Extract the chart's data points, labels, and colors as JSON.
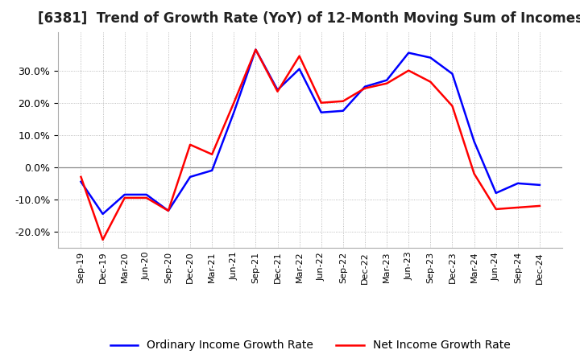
{
  "title": "[6381]  Trend of Growth Rate (YoY) of 12-Month Moving Sum of Incomes",
  "title_fontsize": 12,
  "ordinary_income": {
    "label": "Ordinary Income Growth Rate",
    "color": "#0000FF",
    "data": [
      [
        "Sep-19",
        -4.5
      ],
      [
        "Dec-19",
        -14.5
      ],
      [
        "Mar-20",
        -8.5
      ],
      [
        "Jun-20",
        -8.5
      ],
      [
        "Sep-20",
        -13.5
      ],
      [
        "Dec-20",
        -3.0
      ],
      [
        "Mar-21",
        -1.0
      ],
      [
        "Jun-21",
        17.0
      ],
      [
        "Sep-21",
        36.5
      ],
      [
        "Dec-21",
        24.0
      ],
      [
        "Mar-22",
        30.5
      ],
      [
        "Jun-22",
        17.0
      ],
      [
        "Sep-22",
        17.5
      ],
      [
        "Dec-22",
        25.0
      ],
      [
        "Mar-23",
        27.0
      ],
      [
        "Jun-23",
        35.5
      ],
      [
        "Sep-23",
        34.0
      ],
      [
        "Dec-23",
        29.0
      ],
      [
        "Mar-24",
        8.0
      ],
      [
        "Jun-24",
        -8.0
      ],
      [
        "Sep-24",
        -5.0
      ],
      [
        "Dec-24",
        -5.5
      ]
    ]
  },
  "net_income": {
    "label": "Net Income Growth Rate",
    "color": "#FF0000",
    "data": [
      [
        "Sep-19",
        -3.0
      ],
      [
        "Dec-19",
        -22.5
      ],
      [
        "Mar-20",
        -9.5
      ],
      [
        "Jun-20",
        -9.5
      ],
      [
        "Sep-20",
        -13.5
      ],
      [
        "Dec-20",
        7.0
      ],
      [
        "Mar-21",
        4.0
      ],
      [
        "Jun-21",
        20.0
      ],
      [
        "Sep-21",
        36.5
      ],
      [
        "Dec-21",
        23.5
      ],
      [
        "Mar-22",
        34.5
      ],
      [
        "Jun-22",
        20.0
      ],
      [
        "Sep-22",
        20.5
      ],
      [
        "Dec-22",
        24.5
      ],
      [
        "Mar-23",
        26.0
      ],
      [
        "Jun-23",
        30.0
      ],
      [
        "Sep-23",
        26.5
      ],
      [
        "Dec-23",
        19.0
      ],
      [
        "Mar-24",
        -2.0
      ],
      [
        "Jun-24",
        -13.0
      ],
      [
        "Sep-24",
        -12.5
      ],
      [
        "Dec-24",
        -12.0
      ]
    ]
  },
  "ylim": [
    -25,
    42
  ],
  "yticks": [
    -20,
    -10,
    0,
    10,
    20,
    30
  ],
  "background_color": "#FFFFFF",
  "plot_bg_color": "#FFFFFF",
  "grid_color": "#AAAAAA",
  "zero_line_color": "#888888",
  "legend_fontsize": 10
}
